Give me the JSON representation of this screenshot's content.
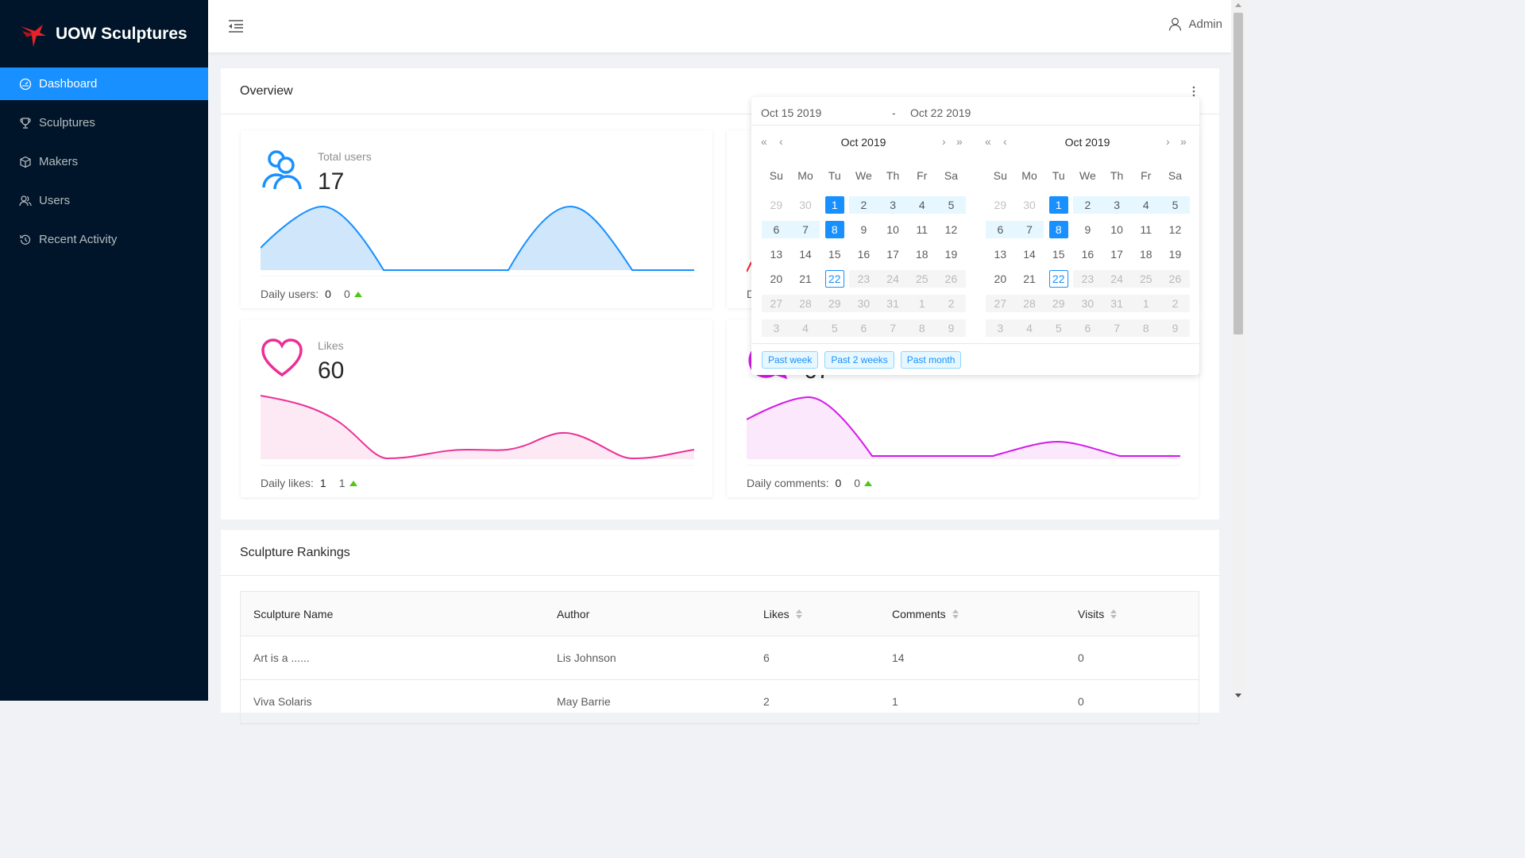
{
  "app": {
    "title": "UOW Sculptures"
  },
  "sidebar": {
    "items": [
      {
        "label": "Dashboard",
        "icon": "dashboard-icon",
        "active": true
      },
      {
        "label": "Sculptures",
        "icon": "trophy-icon"
      },
      {
        "label": "Makers",
        "icon": "cube-icon"
      },
      {
        "label": "Users",
        "icon": "users-icon"
      },
      {
        "label": "Recent Activity",
        "icon": "history-icon"
      }
    ]
  },
  "header": {
    "user": "Admin"
  },
  "overview": {
    "title": "Overview",
    "stats": [
      {
        "label": "Total users",
        "value": "17",
        "foot_label": "Daily users:",
        "foot_value": "0",
        "delta": "0",
        "color": "#1890ff",
        "fill": "#cfe6fb"
      },
      {
        "label": "Likes",
        "value": "60",
        "foot_label": "Daily likes:",
        "foot_value": "1",
        "delta": "1",
        "color": "#eb2f96",
        "fill": "#fde9f3"
      },
      {
        "label": "",
        "value": "",
        "foot_label": "D",
        "foot_value": "",
        "delta": "",
        "color": "#f5222d",
        "fill": "#ffffff"
      },
      {
        "label": "",
        "value": "67",
        "foot_label": "Daily comments:",
        "foot_value": "0",
        "delta": "0",
        "color": "#d21ae8",
        "fill": "#fbe8fd"
      }
    ]
  },
  "datepicker": {
    "start": "Oct 15 2019",
    "separator": "-",
    "end": "Oct 22 2019",
    "months": [
      {
        "title": "Oct 2019"
      },
      {
        "title": "Oct 2019"
      }
    ],
    "weekdays": [
      "Su",
      "Mo",
      "Tu",
      "We",
      "Th",
      "Fr",
      "Sa"
    ],
    "days": [
      [
        "29",
        "30",
        "1",
        "2",
        "3",
        "4",
        "5"
      ],
      [
        "6",
        "7",
        "8",
        "9",
        "10",
        "11",
        "12"
      ],
      [
        "13",
        "14",
        "15",
        "16",
        "17",
        "18",
        "19"
      ],
      [
        "20",
        "21",
        "22",
        "23",
        "24",
        "25",
        "26"
      ],
      [
        "27",
        "28",
        "29",
        "30",
        "31",
        "1",
        "2"
      ],
      [
        "3",
        "4",
        "5",
        "6",
        "7",
        "8",
        "9"
      ]
    ],
    "ranges": [
      "Past week",
      "Past 2 weeks",
      "Past month"
    ]
  },
  "rankings": {
    "title": "Sculpture Rankings",
    "columns": [
      "Sculpture Name",
      "Author",
      "Likes",
      "Comments",
      "Visits"
    ],
    "rows": [
      [
        "Art is a ......",
        "Lis Johnson",
        "6",
        "14",
        "0"
      ],
      [
        "Viva Solaris",
        "May Barrie",
        "2",
        "1",
        "0"
      ]
    ]
  }
}
